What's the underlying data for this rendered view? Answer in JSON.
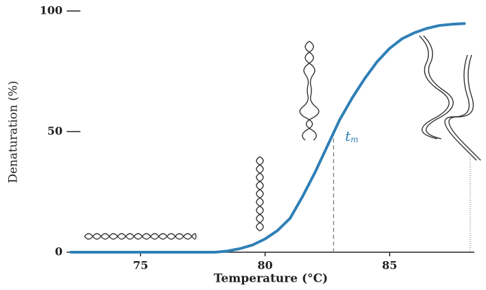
{
  "chart_data": {
    "type": "line",
    "x_label": "Temperature (°C)",
    "y_label": "Denaturation (%)",
    "x": [
      72.2,
      74,
      76,
      78,
      78.5,
      79,
      79.5,
      80,
      80.5,
      81,
      81.5,
      82,
      82.5,
      83,
      83.5,
      84,
      84.5,
      85,
      85.5,
      86,
      86.5,
      87,
      87.5,
      88
    ],
    "values": [
      0,
      0,
      0,
      0,
      0.5,
      1.5,
      3,
      5.5,
      9,
      14,
      23,
      33,
      44,
      55,
      64,
      72,
      79,
      84.5,
      88.5,
      91,
      92.8,
      94,
      94.5,
      94.8
    ],
    "color": "#2f7fb6",
    "xlim": [
      72.2,
      88.4
    ],
    "ylim": [
      0,
      100
    ],
    "xticks": [
      75,
      80,
      85
    ],
    "yticks": [
      0,
      50,
      100
    ],
    "tm_marker": {
      "x": 82.75,
      "y": 50
    },
    "tm_label": "t",
    "tm_subscript": "m"
  }
}
